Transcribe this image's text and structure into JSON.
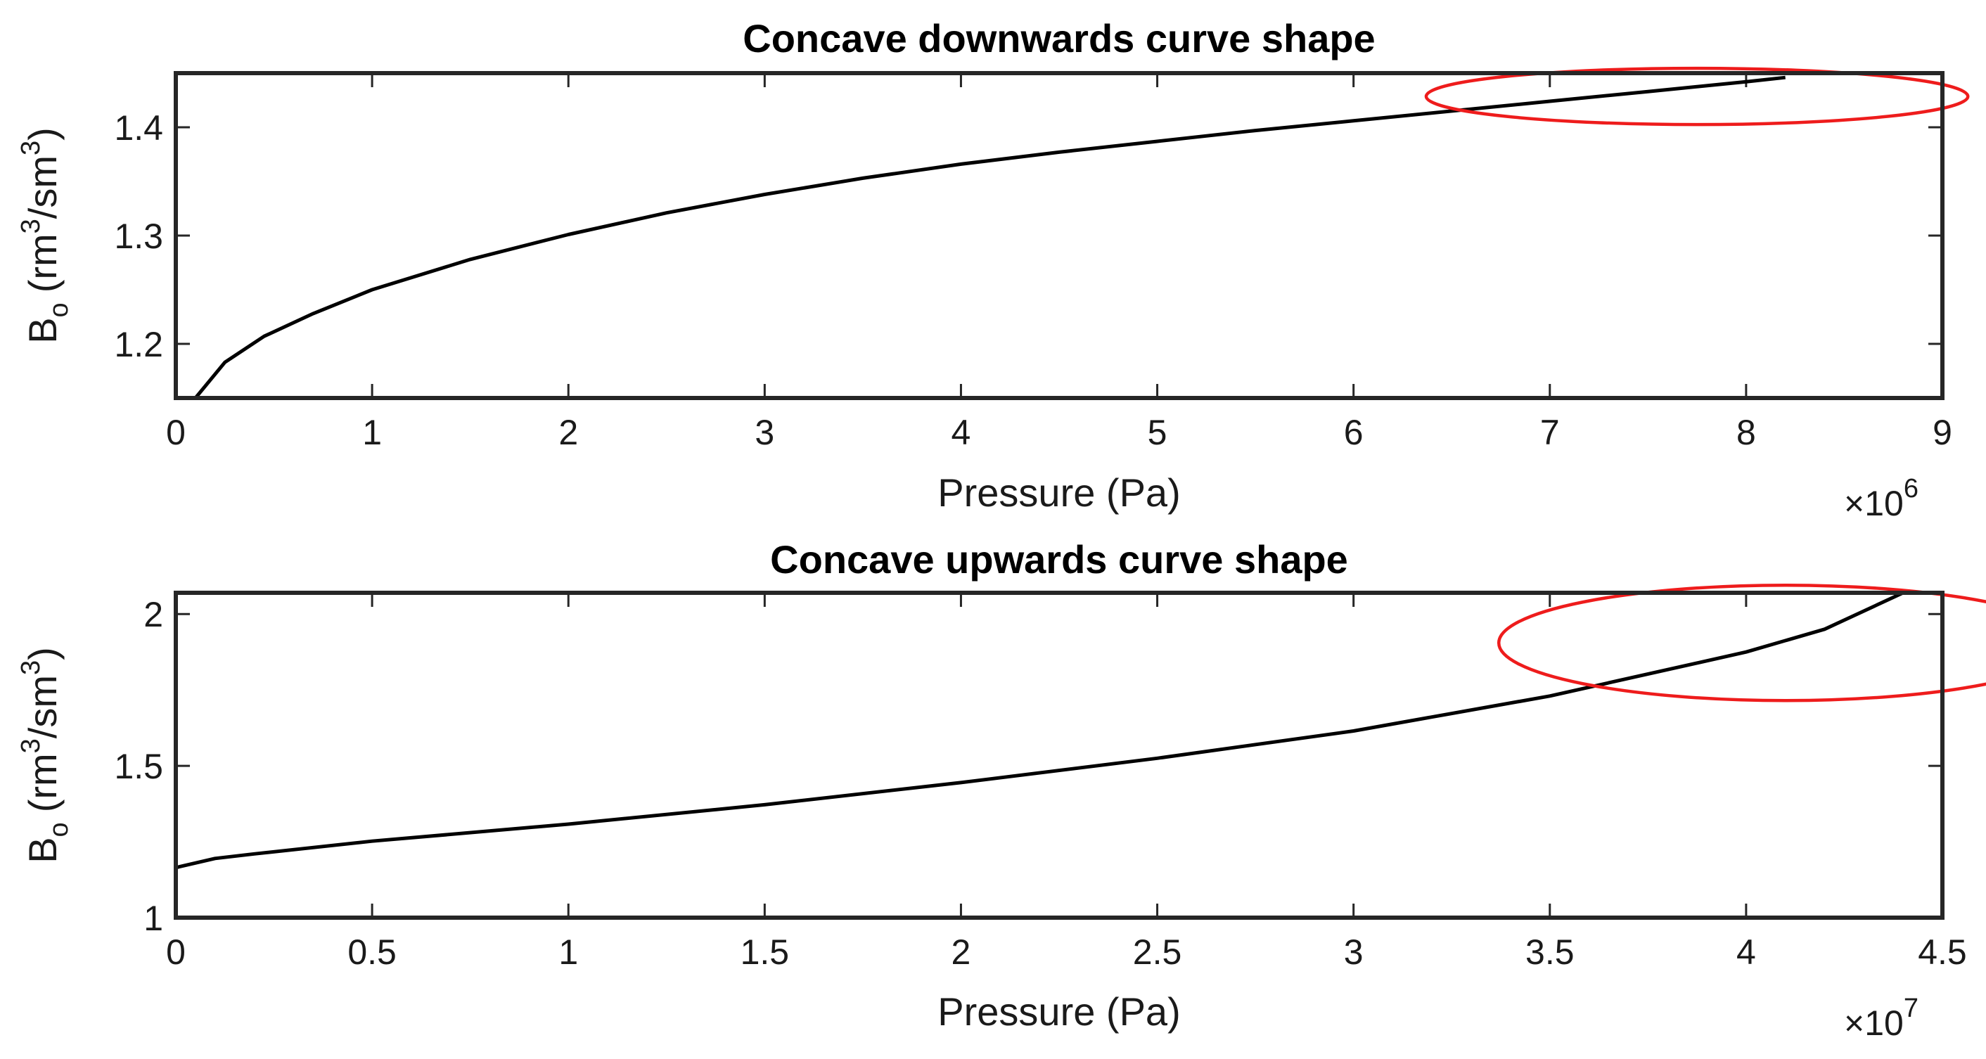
{
  "chart_data": [
    {
      "type": "line",
      "title": "Concave downwards curve shape",
      "xlabel": "Pressure (Pa)",
      "ylabel_main": "B",
      "ylabel_sub": "o",
      "ylabel_unit_prefix": "(rm",
      "ylabel_unit_mid": "/sm",
      "ylabel_unit_suffix": ")",
      "ylabel_sup": "3",
      "x_exponent_base": "×10",
      "x_exponent": "6",
      "x_scale": 1000000,
      "xlim": [
        0,
        9
      ],
      "ylim": [
        1.15,
        1.45
      ],
      "xticks": [
        0,
        1,
        2,
        3,
        4,
        5,
        6,
        7,
        8,
        9
      ],
      "xtick_labels": [
        "0",
        "1",
        "2",
        "3",
        "4",
        "5",
        "6",
        "7",
        "8",
        "9"
      ],
      "yticks": [
        1.2,
        1.3,
        1.4
      ],
      "ytick_labels": [
        "1.2",
        "1.3",
        "1.4"
      ],
      "series": [
        {
          "name": "Bo",
          "color": "#000000",
          "x": [
            0.1,
            0.25,
            0.45,
            0.7,
            1.0,
            1.5,
            2.0,
            2.5,
            3.0,
            3.5,
            4.0,
            4.5,
            5.0,
            5.5,
            6.0,
            6.5,
            7.0,
            7.5,
            8.0,
            8.2
          ],
          "y": [
            1.15,
            1.183,
            1.207,
            1.228,
            1.25,
            1.278,
            1.301,
            1.321,
            1.338,
            1.353,
            1.366,
            1.377,
            1.387,
            1.397,
            1.406,
            1.415,
            1.424,
            1.433,
            1.442,
            1.446
          ]
        }
      ],
      "annotation_ellipse": {
        "color": "#ee1c1c",
        "cx": 7.75,
        "cy": 1.4285,
        "rx": 1.38,
        "ry": 0.026
      }
    },
    {
      "type": "line",
      "title": "Concave upwards curve shape",
      "xlabel": "Pressure (Pa)",
      "ylabel_main": "B",
      "ylabel_sub": "o",
      "ylabel_unit_prefix": "(rm",
      "ylabel_unit_mid": "/sm",
      "ylabel_unit_suffix": ")",
      "ylabel_sup": "3",
      "x_exponent_base": "×10",
      "x_exponent": "7",
      "x_scale": 10000000,
      "xlim": [
        0,
        4.5
      ],
      "ylim": [
        1.0,
        2.07
      ],
      "xticks": [
        0,
        0.5,
        1,
        1.5,
        2,
        2.5,
        3,
        3.5,
        4,
        4.5
      ],
      "xtick_labels": [
        "0",
        "0.5",
        "1",
        "1.5",
        "2",
        "2.5",
        "3",
        "3.5",
        "4",
        "4.5"
      ],
      "yticks": [
        1,
        1.5,
        2
      ],
      "ytick_labels": [
        "1",
        "1.5",
        "2"
      ],
      "series": [
        {
          "name": "Bo",
          "color": "#000000",
          "x": [
            0,
            0.1,
            0.2,
            0.5,
            1.0,
            1.5,
            2.0,
            2.5,
            3.0,
            3.5,
            4.0,
            4.2,
            4.4
          ],
          "y": [
            1.165,
            1.195,
            1.21,
            1.252,
            1.308,
            1.372,
            1.445,
            1.525,
            1.615,
            1.73,
            1.875,
            1.95,
            2.07
          ]
        }
      ],
      "annotation_ellipse": {
        "color": "#ee1c1c",
        "cx": 4.1,
        "cy": 1.905,
        "rx": 0.73,
        "ry": 0.19
      }
    }
  ]
}
